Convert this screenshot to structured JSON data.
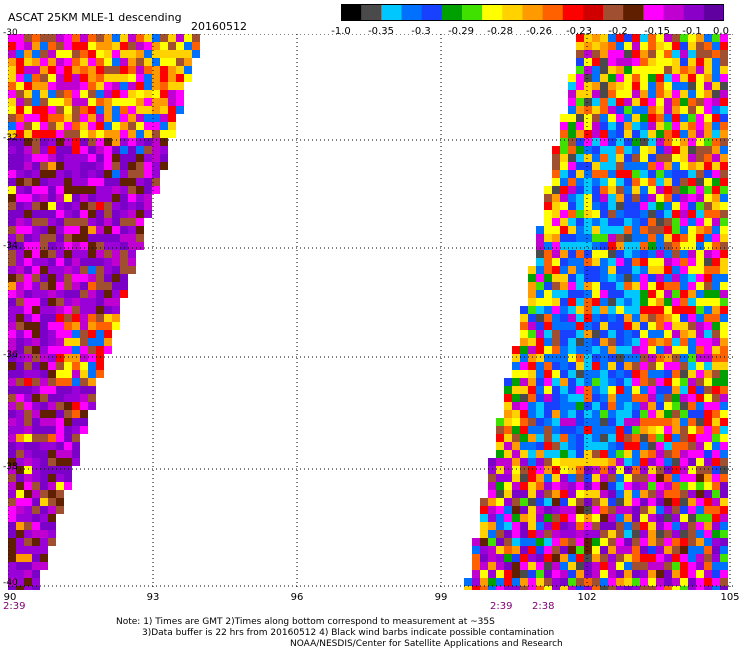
{
  "header": {
    "title": "ASCAT 25KM MLE-1 descending",
    "date": "20160512"
  },
  "colorbar": {
    "labels": [
      "-1.0",
      "-0.35",
      "-0.3",
      "-0.29",
      "-0.28",
      "-0.26",
      "-0.23",
      "-0.2",
      "-0.15",
      "-0.1",
      "0.0"
    ],
    "colors": [
      "#000000",
      "#4a4a4a",
      "#00c8ff",
      "#0070ff",
      "#1840ff",
      "#00a000",
      "#40e000",
      "#ffff00",
      "#ffd200",
      "#ff9a00",
      "#ff6000",
      "#ff0000",
      "#d00000",
      "#a05030",
      "#602000",
      "#ff00ff",
      "#c000d0",
      "#8a00c8",
      "#6000a0"
    ]
  },
  "map": {
    "x_ticks": [
      "90",
      "93",
      "96",
      "99",
      "102",
      "105"
    ],
    "y_ticks": [
      "-30",
      "-32",
      "-34",
      "-36",
      "-38",
      "-40"
    ],
    "x_range": [
      90,
      105
    ],
    "y_range": [
      -40,
      -30
    ],
    "palette": [
      "#7b00c8",
      "#9a00d8",
      "#c000d0",
      "#ff00ff",
      "#a05030",
      "#602000",
      "#ff0000",
      "#ff6000",
      "#ff9a00",
      "#ffd200",
      "#ffff00",
      "#00a000",
      "#40e000",
      "#0070ff",
      "#1840ff",
      "#00c8ff",
      "#4a4a4a"
    ]
  },
  "times": {
    "left": "2:39",
    "right_a": "2:39",
    "right_b": "2:38"
  },
  "note": {
    "line1": "Note: 1) Times are GMT 2)Times along bottom correspond to measurement at ~35S",
    "line2": "3)Data buffer is 22 hrs from 20160512 4) Black wind barbs indicate possible contamination",
    "line3": "NOAA/NESDIS/Center for Satellite Applications and Research"
  }
}
